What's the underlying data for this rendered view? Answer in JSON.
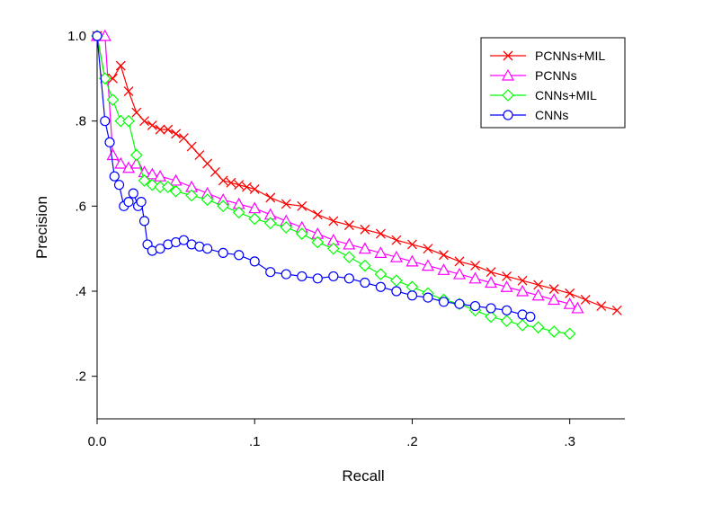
{
  "chart_data": {
    "type": "line",
    "title": "",
    "xlabel": "Recall",
    "ylabel": "Precision",
    "xlim": [
      0,
      0.335
    ],
    "ylim": [
      0.1,
      1.0
    ],
    "x_ticks": [
      0,
      0.1,
      0.2,
      0.3
    ],
    "x_tick_labels": [
      "0.0",
      ".1",
      ".2",
      ".3"
    ],
    "y_ticks": [
      0.2,
      0.4,
      0.6,
      0.8,
      1.0
    ],
    "y_tick_labels": [
      ".2",
      ".4",
      ".6",
      ".8",
      "1.0"
    ],
    "grid": false,
    "legend_position": "top-right",
    "series": [
      {
        "name": "PCNNs+MIL",
        "color": "#ff0000",
        "marker": "x",
        "points": [
          [
            0.0,
            1.0
          ],
          [
            0.005,
            0.9
          ],
          [
            0.01,
            0.9
          ],
          [
            0.015,
            0.93
          ],
          [
            0.02,
            0.87
          ],
          [
            0.025,
            0.82
          ],
          [
            0.03,
            0.8
          ],
          [
            0.035,
            0.79
          ],
          [
            0.04,
            0.78
          ],
          [
            0.045,
            0.78
          ],
          [
            0.05,
            0.77
          ],
          [
            0.055,
            0.76
          ],
          [
            0.06,
            0.74
          ],
          [
            0.065,
            0.72
          ],
          [
            0.07,
            0.7
          ],
          [
            0.075,
            0.68
          ],
          [
            0.08,
            0.66
          ],
          [
            0.085,
            0.655
          ],
          [
            0.09,
            0.65
          ],
          [
            0.095,
            0.645
          ],
          [
            0.1,
            0.64
          ],
          [
            0.11,
            0.62
          ],
          [
            0.12,
            0.605
          ],
          [
            0.13,
            0.6
          ],
          [
            0.14,
            0.58
          ],
          [
            0.15,
            0.565
          ],
          [
            0.16,
            0.555
          ],
          [
            0.17,
            0.545
          ],
          [
            0.18,
            0.535
          ],
          [
            0.19,
            0.52
          ],
          [
            0.2,
            0.51
          ],
          [
            0.21,
            0.5
          ],
          [
            0.22,
            0.485
          ],
          [
            0.23,
            0.47
          ],
          [
            0.24,
            0.46
          ],
          [
            0.25,
            0.445
          ],
          [
            0.26,
            0.435
          ],
          [
            0.27,
            0.425
          ],
          [
            0.28,
            0.415
          ],
          [
            0.29,
            0.405
          ],
          [
            0.3,
            0.395
          ],
          [
            0.31,
            0.38
          ],
          [
            0.32,
            0.365
          ],
          [
            0.33,
            0.355
          ]
        ]
      },
      {
        "name": "PCNNs",
        "color": "#ff00ff",
        "marker": "triangle",
        "points": [
          [
            0.0,
            1.0
          ],
          [
            0.005,
            1.0
          ],
          [
            0.01,
            0.72
          ],
          [
            0.015,
            0.7
          ],
          [
            0.02,
            0.69
          ],
          [
            0.025,
            0.7
          ],
          [
            0.03,
            0.68
          ],
          [
            0.035,
            0.675
          ],
          [
            0.04,
            0.67
          ],
          [
            0.05,
            0.66
          ],
          [
            0.06,
            0.645
          ],
          [
            0.07,
            0.63
          ],
          [
            0.08,
            0.615
          ],
          [
            0.09,
            0.605
          ],
          [
            0.1,
            0.595
          ],
          [
            0.11,
            0.58
          ],
          [
            0.12,
            0.565
          ],
          [
            0.13,
            0.55
          ],
          [
            0.14,
            0.535
          ],
          [
            0.15,
            0.52
          ],
          [
            0.16,
            0.51
          ],
          [
            0.17,
            0.5
          ],
          [
            0.18,
            0.49
          ],
          [
            0.19,
            0.48
          ],
          [
            0.2,
            0.47
          ],
          [
            0.21,
            0.46
          ],
          [
            0.22,
            0.45
          ],
          [
            0.23,
            0.44
          ],
          [
            0.24,
            0.43
          ],
          [
            0.25,
            0.42
          ],
          [
            0.26,
            0.41
          ],
          [
            0.27,
            0.4
          ],
          [
            0.28,
            0.39
          ],
          [
            0.29,
            0.38
          ],
          [
            0.3,
            0.37
          ],
          [
            0.305,
            0.36
          ]
        ]
      },
      {
        "name": "CNNs+MIL",
        "color": "#00ff00",
        "marker": "diamond",
        "points": [
          [
            0.0,
            1.0
          ],
          [
            0.005,
            0.9
          ],
          [
            0.01,
            0.85
          ],
          [
            0.015,
            0.8
          ],
          [
            0.02,
            0.8
          ],
          [
            0.025,
            0.72
          ],
          [
            0.03,
            0.66
          ],
          [
            0.035,
            0.65
          ],
          [
            0.04,
            0.645
          ],
          [
            0.045,
            0.645
          ],
          [
            0.05,
            0.635
          ],
          [
            0.06,
            0.625
          ],
          [
            0.07,
            0.615
          ],
          [
            0.08,
            0.6
          ],
          [
            0.09,
            0.585
          ],
          [
            0.1,
            0.57
          ],
          [
            0.11,
            0.56
          ],
          [
            0.12,
            0.55
          ],
          [
            0.13,
            0.535
          ],
          [
            0.14,
            0.515
          ],
          [
            0.15,
            0.5
          ],
          [
            0.16,
            0.48
          ],
          [
            0.17,
            0.46
          ],
          [
            0.18,
            0.44
          ],
          [
            0.19,
            0.425
          ],
          [
            0.2,
            0.41
          ],
          [
            0.21,
            0.395
          ],
          [
            0.22,
            0.38
          ],
          [
            0.23,
            0.37
          ],
          [
            0.24,
            0.355
          ],
          [
            0.25,
            0.34
          ],
          [
            0.26,
            0.33
          ],
          [
            0.27,
            0.32
          ],
          [
            0.28,
            0.315
          ],
          [
            0.29,
            0.305
          ],
          [
            0.3,
            0.3
          ]
        ]
      },
      {
        "name": "CNNs",
        "color": "#0000ff",
        "marker": "circle",
        "points": [
          [
            0.0,
            1.0
          ],
          [
            0.005,
            0.8
          ],
          [
            0.008,
            0.75
          ],
          [
            0.011,
            0.67
          ],
          [
            0.014,
            0.65
          ],
          [
            0.017,
            0.6
          ],
          [
            0.02,
            0.61
          ],
          [
            0.023,
            0.63
          ],
          [
            0.026,
            0.6
          ],
          [
            0.028,
            0.61
          ],
          [
            0.03,
            0.565
          ],
          [
            0.032,
            0.51
          ],
          [
            0.035,
            0.495
          ],
          [
            0.04,
            0.5
          ],
          [
            0.045,
            0.51
          ],
          [
            0.05,
            0.515
          ],
          [
            0.055,
            0.52
          ],
          [
            0.06,
            0.51
          ],
          [
            0.065,
            0.505
          ],
          [
            0.07,
            0.5
          ],
          [
            0.08,
            0.49
          ],
          [
            0.09,
            0.485
          ],
          [
            0.1,
            0.47
          ],
          [
            0.11,
            0.445
          ],
          [
            0.12,
            0.44
          ],
          [
            0.13,
            0.435
          ],
          [
            0.14,
            0.43
          ],
          [
            0.15,
            0.435
          ],
          [
            0.16,
            0.43
          ],
          [
            0.17,
            0.42
          ],
          [
            0.18,
            0.41
          ],
          [
            0.19,
            0.4
          ],
          [
            0.2,
            0.39
          ],
          [
            0.21,
            0.385
          ],
          [
            0.22,
            0.375
          ],
          [
            0.23,
            0.37
          ],
          [
            0.24,
            0.365
          ],
          [
            0.25,
            0.36
          ],
          [
            0.26,
            0.355
          ],
          [
            0.27,
            0.345
          ],
          [
            0.275,
            0.34
          ]
        ]
      }
    ]
  }
}
